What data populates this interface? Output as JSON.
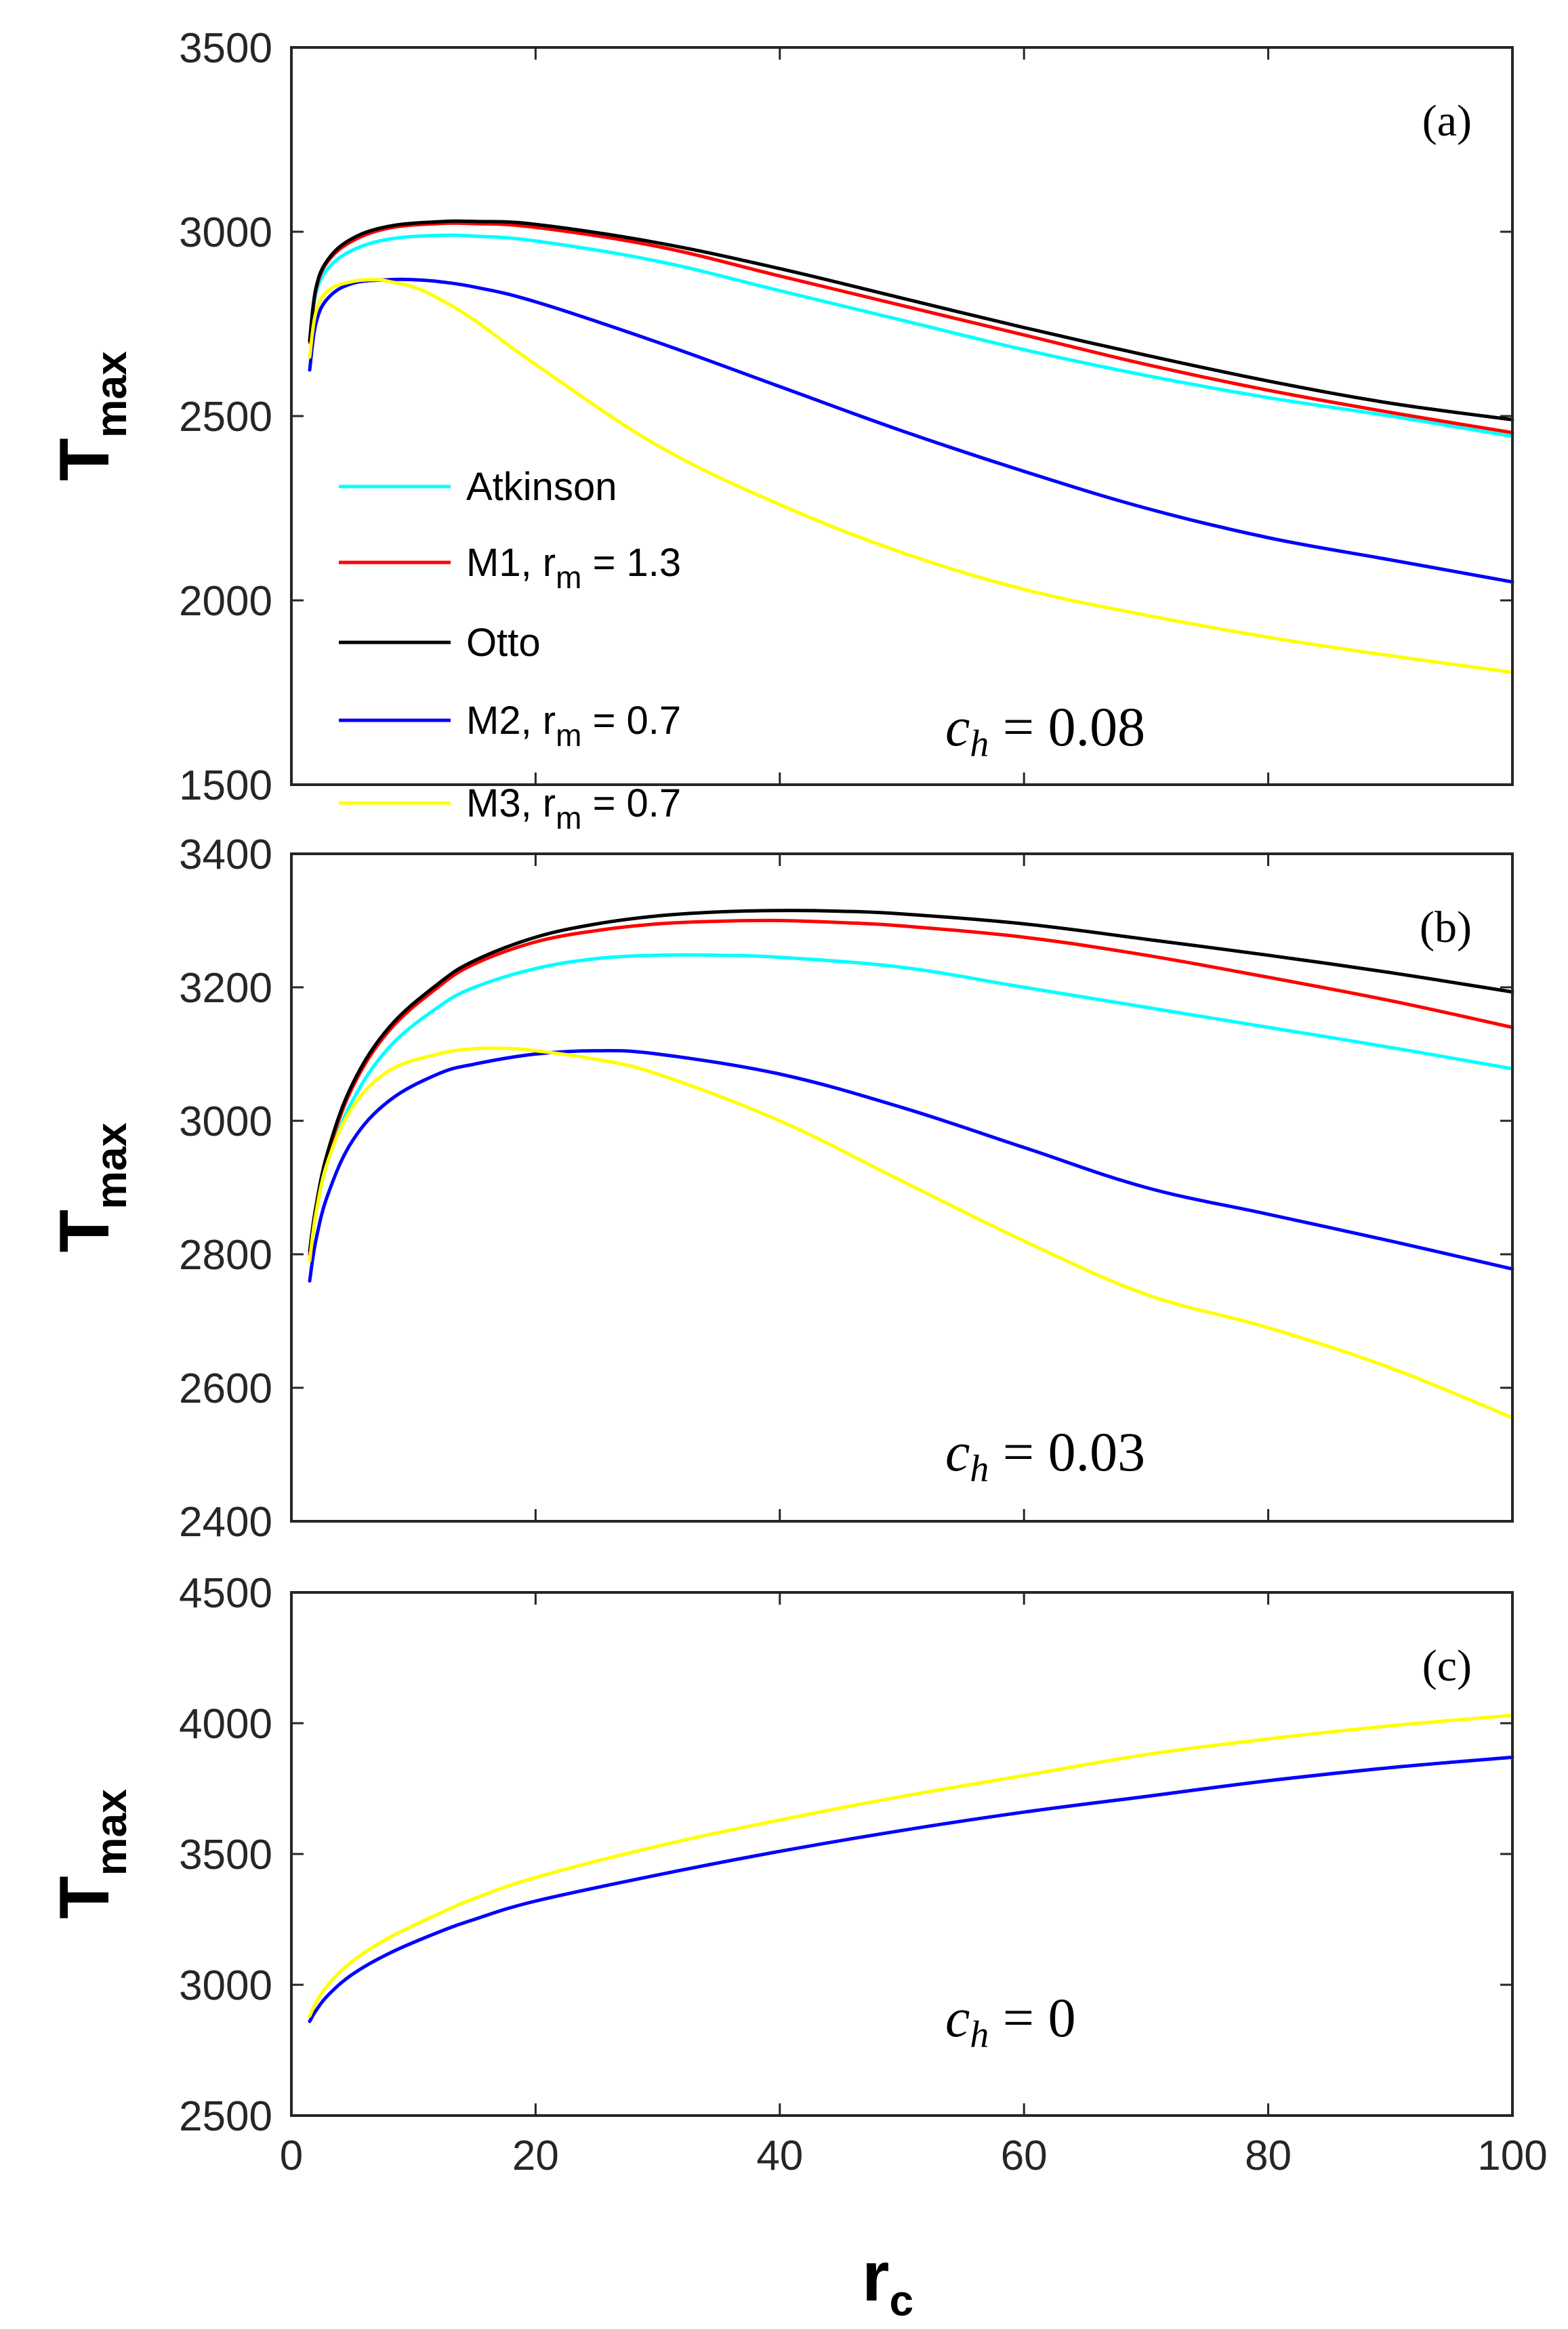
{
  "chart_data": [
    {
      "type": "line",
      "panel_label": "(a)",
      "annotation": "c_h = 0.08",
      "annotation_parts": {
        "var": "c",
        "sub": "h",
        "rest": " = 0.08"
      },
      "xlabel": "",
      "ylabel_main": "T",
      "ylabel_sub": "max",
      "xlim": [
        0,
        100
      ],
      "ylim": [
        1500,
        3500
      ],
      "xticks": [
        0,
        20,
        40,
        60,
        80,
        100
      ],
      "xtick_labels_shown": false,
      "yticks": [
        1500,
        2000,
        2500,
        3000,
        3500
      ],
      "legend": "inside-left",
      "series": [
        {
          "name": "Atkinson",
          "name_parts": {
            "base": "Atkinson",
            "sub": "",
            "tail": ""
          },
          "color": "#00ffff",
          "x": [
            1.5,
            2,
            3,
            5,
            8,
            12,
            15,
            20,
            30,
            40,
            50,
            60,
            70,
            80,
            90,
            100
          ],
          "y": [
            2700,
            2830,
            2900,
            2950,
            2980,
            2990,
            2988,
            2975,
            2920,
            2840,
            2760,
            2680,
            2610,
            2550,
            2500,
            2445
          ]
        },
        {
          "name": "M1, r_m = 1.3",
          "name_parts": {
            "base": "M1, r",
            "sub": "m",
            "tail": " = 1.3"
          },
          "color": "#ff0000",
          "x": [
            1.5,
            2,
            3,
            5,
            8,
            12,
            15,
            20,
            30,
            40,
            50,
            60,
            70,
            80,
            90,
            100
          ],
          "y": [
            2700,
            2840,
            2920,
            2975,
            3010,
            3022,
            3022,
            3012,
            2960,
            2880,
            2800,
            2720,
            2640,
            2570,
            2510,
            2455
          ]
        },
        {
          "name": "Otto",
          "name_parts": {
            "base": "Otto",
            "sub": "",
            "tail": ""
          },
          "color": "#000000",
          "x": [
            1.5,
            2,
            3,
            5,
            8,
            12,
            15,
            20,
            30,
            40,
            50,
            60,
            70,
            80,
            90,
            100
          ],
          "y": [
            2705,
            2845,
            2925,
            2982,
            3015,
            3027,
            3028,
            3020,
            2970,
            2900,
            2820,
            2740,
            2665,
            2595,
            2535,
            2490
          ]
        },
        {
          "name": "M2, r_m = 0.7",
          "name_parts": {
            "base": "M2, r",
            "sub": "m",
            "tail": " = 0.7"
          },
          "color": "#0000ff",
          "x": [
            1.5,
            2,
            3,
            5,
            8,
            10,
            12,
            15,
            20,
            30,
            40,
            50,
            60,
            70,
            80,
            90,
            100
          ],
          "y": [
            2625,
            2750,
            2820,
            2860,
            2870,
            2870,
            2865,
            2850,
            2810,
            2700,
            2580,
            2460,
            2350,
            2250,
            2170,
            2110,
            2050
          ]
        },
        {
          "name": "M3, r_m = 0.7",
          "name_parts": {
            "base": "M3, r",
            "sub": "m",
            "tail": " = 0.7"
          },
          "color": "#ffff00",
          "x": [
            1.5,
            2,
            3,
            5,
            7,
            8,
            10,
            12,
            15,
            20,
            30,
            40,
            50,
            60,
            70,
            80,
            90,
            100
          ],
          "y": [
            2660,
            2780,
            2840,
            2865,
            2870,
            2865,
            2850,
            2820,
            2760,
            2640,
            2420,
            2260,
            2130,
            2030,
            1960,
            1900,
            1850,
            1805
          ]
        }
      ]
    },
    {
      "type": "line",
      "panel_label": "(b)",
      "annotation": "c_h = 0.03",
      "annotation_parts": {
        "var": "c",
        "sub": "h",
        "rest": " = 0.03"
      },
      "xlabel": "",
      "ylabel_main": "T",
      "ylabel_sub": "max",
      "xlim": [
        0,
        100
      ],
      "ylim": [
        2400,
        3400
      ],
      "xticks": [
        0,
        20,
        40,
        60,
        80,
        100
      ],
      "xtick_labels_shown": false,
      "yticks": [
        2400,
        2600,
        2800,
        3000,
        3200,
        3400
      ],
      "series": [
        {
          "name": "Atkinson",
          "color": "#00ffff",
          "x": [
            1.5,
            2,
            3,
            5,
            8,
            12,
            15,
            20,
            25,
            30,
            35,
            40,
            50,
            60,
            70,
            80,
            90,
            100
          ],
          "y": [
            2800,
            2860,
            2940,
            3030,
            3110,
            3170,
            3200,
            3228,
            3243,
            3248,
            3248,
            3245,
            3230,
            3200,
            3170,
            3140,
            3110,
            3078
          ]
        },
        {
          "name": "M1, r_m = 1.3",
          "color": "#ff0000",
          "x": [
            1.5,
            2,
            3,
            5,
            8,
            12,
            15,
            20,
            25,
            30,
            35,
            40,
            45,
            50,
            60,
            70,
            80,
            90,
            100
          ],
          "y": [
            2800,
            2865,
            2950,
            3050,
            3135,
            3200,
            3235,
            3268,
            3285,
            3295,
            3299,
            3300,
            3297,
            3292,
            3275,
            3248,
            3215,
            3180,
            3140
          ]
        },
        {
          "name": "Otto",
          "color": "#000000",
          "x": [
            1.5,
            2,
            3,
            5,
            8,
            12,
            15,
            20,
            25,
            30,
            35,
            40,
            45,
            50,
            60,
            70,
            80,
            90,
            100
          ],
          "y": [
            2805,
            2870,
            2955,
            3055,
            3140,
            3205,
            3240,
            3275,
            3295,
            3307,
            3313,
            3315,
            3314,
            3310,
            3295,
            3272,
            3248,
            3222,
            3193
          ]
        },
        {
          "name": "M2, r_m = 0.7",
          "color": "#0000ff",
          "x": [
            1.5,
            2,
            3,
            5,
            8,
            12,
            15,
            20,
            25,
            30,
            40,
            50,
            60,
            70,
            80,
            90,
            100
          ],
          "y": [
            2760,
            2820,
            2890,
            2970,
            3030,
            3070,
            3085,
            3100,
            3105,
            3100,
            3070,
            3020,
            2960,
            2900,
            2860,
            2820,
            2778
          ]
        },
        {
          "name": "M3, r_m = 0.7",
          "color": "#ffff00",
          "x": [
            1.5,
            2,
            3,
            5,
            8,
            12,
            15,
            18,
            20,
            25,
            30,
            40,
            50,
            60,
            70,
            80,
            90,
            100
          ],
          "y": [
            2790,
            2860,
            2940,
            3020,
            3075,
            3100,
            3108,
            3108,
            3105,
            3092,
            3070,
            3000,
            2910,
            2820,
            2740,
            2690,
            2630,
            2555
          ]
        }
      ]
    },
    {
      "type": "line",
      "panel_label": "(c)",
      "annotation": "c_h = 0",
      "annotation_parts": {
        "var": "c",
        "sub": "h",
        "rest": " = 0"
      },
      "xlabel_main": "r",
      "xlabel_sub": "c",
      "ylabel_main": "T",
      "ylabel_sub": "max",
      "xlim": [
        0,
        100
      ],
      "ylim": [
        2500,
        4500
      ],
      "xticks": [
        0,
        20,
        40,
        60,
        80,
        100
      ],
      "xtick_labels_shown": true,
      "yticks": [
        2500,
        3000,
        3500,
        4000,
        4500
      ],
      "series": [
        {
          "name": "M2, r_m = 0.7",
          "color": "#0000ff",
          "x": [
            1.5,
            2,
            3,
            5,
            8,
            12,
            15,
            20,
            30,
            40,
            50,
            60,
            70,
            80,
            90,
            100
          ],
          "y": [
            2860,
            2900,
            2960,
            3040,
            3120,
            3200,
            3250,
            3320,
            3420,
            3510,
            3590,
            3660,
            3720,
            3780,
            3830,
            3870
          ]
        },
        {
          "name": "M3, r_m = 0.7",
          "color": "#ffff00",
          "x": [
            1.5,
            2,
            3,
            5,
            8,
            12,
            15,
            20,
            30,
            40,
            50,
            60,
            70,
            80,
            90,
            100
          ],
          "y": [
            2880,
            2930,
            3000,
            3090,
            3180,
            3270,
            3330,
            3410,
            3530,
            3630,
            3720,
            3800,
            3880,
            3940,
            3990,
            4030
          ]
        }
      ]
    }
  ]
}
